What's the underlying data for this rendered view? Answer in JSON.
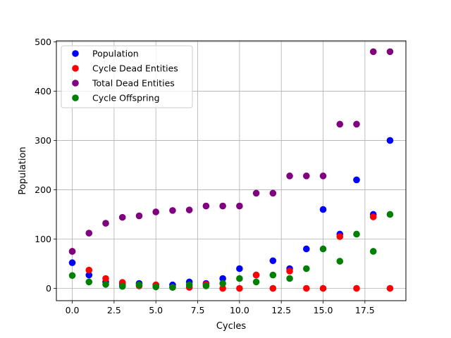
{
  "chart_data": {
    "type": "scatter",
    "title": "",
    "xlabel": "Cycles",
    "ylabel": "Population",
    "xlim": [
      -0.95,
      19.95
    ],
    "ylim": [
      -25,
      502
    ],
    "xticks": [
      0.0,
      2.5,
      5.0,
      7.5,
      10.0,
      12.5,
      15.0,
      17.5
    ],
    "xtick_labels": [
      "0.0",
      "2.5",
      "5.0",
      "7.5",
      "10.0",
      "12.5",
      "15.0",
      "17.5"
    ],
    "yticks": [
      0,
      100,
      200,
      300,
      400,
      500
    ],
    "ytick_labels": [
      "0",
      "100",
      "200",
      "300",
      "400",
      "500"
    ],
    "grid": true,
    "legend_position": "top-left",
    "x": [
      0,
      1,
      2,
      3,
      4,
      5,
      6,
      7,
      8,
      9,
      10,
      11,
      12,
      13,
      14,
      15,
      16,
      17,
      18,
      19
    ],
    "series": [
      {
        "name": "Population",
        "color": "#0000ff",
        "values": [
          52,
          27,
          13,
          8,
          10,
          7,
          7,
          13,
          10,
          20,
          40,
          27,
          56,
          40,
          80,
          160,
          110,
          220,
          150,
          300
        ]
      },
      {
        "name": "Cycle Dead Entities",
        "color": "#ff0000",
        "values": [
          75,
          37,
          20,
          12,
          5,
          7,
          2,
          2,
          8,
          0,
          0,
          27,
          0,
          35,
          0,
          0,
          105,
          0,
          145,
          0
        ]
      },
      {
        "name": "Total Dead Entities",
        "color": "#800080",
        "values": [
          75,
          112,
          132,
          144,
          147,
          155,
          158,
          159,
          167,
          167,
          167,
          193,
          193,
          228,
          228,
          228,
          333,
          333,
          480,
          480
        ]
      },
      {
        "name": "Cycle Offspring",
        "color": "#008000",
        "values": [
          26,
          13,
          8,
          4,
          7,
          3,
          2,
          7,
          5,
          10,
          20,
          13,
          27,
          20,
          40,
          80,
          55,
          110,
          75,
          150
        ]
      }
    ]
  }
}
